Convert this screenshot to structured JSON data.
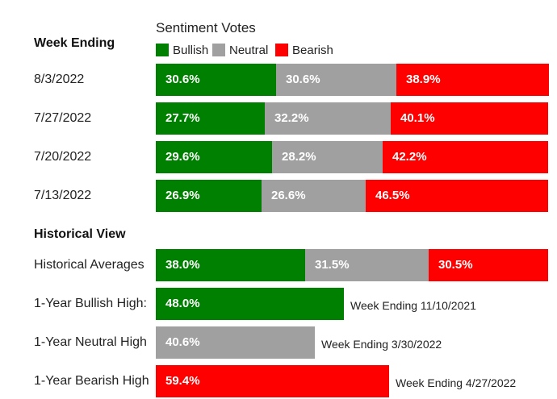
{
  "colors": {
    "bullish": "#008000",
    "neutral": "#a0a0a0",
    "bearish": "#ff0000"
  },
  "chart_data": {
    "type": "bar",
    "orientation": "horizontal",
    "stacked": true,
    "legend_title": "Sentiment Votes",
    "legend": [
      "Bullish",
      "Neutral",
      "Bearish"
    ],
    "sections": [
      {
        "title": "Week Ending",
        "rows": [
          {
            "label": "8/3/2022",
            "values": [
              {
                "series": "Bullish",
                "value": 30.6,
                "text": "30.6%"
              },
              {
                "series": "Neutral",
                "value": 30.6,
                "text": "30.6%"
              },
              {
                "series": "Bearish",
                "value": 38.9,
                "text": "38.9%"
              }
            ]
          },
          {
            "label": "7/27/2022",
            "values": [
              {
                "series": "Bullish",
                "value": 27.7,
                "text": "27.7%"
              },
              {
                "series": "Neutral",
                "value": 32.2,
                "text": "32.2%"
              },
              {
                "series": "Bearish",
                "value": 40.1,
                "text": "40.1%"
              }
            ]
          },
          {
            "label": "7/20/2022",
            "values": [
              {
                "series": "Bullish",
                "value": 29.6,
                "text": "29.6%"
              },
              {
                "series": "Neutral",
                "value": 28.2,
                "text": "28.2%"
              },
              {
                "series": "Bearish",
                "value": 42.2,
                "text": "42.2%"
              }
            ]
          },
          {
            "label": "7/13/2022",
            "values": [
              {
                "series": "Bullish",
                "value": 26.9,
                "text": "26.9%"
              },
              {
                "series": "Neutral",
                "value": 26.6,
                "text": "26.6%"
              },
              {
                "series": "Bearish",
                "value": 46.5,
                "text": "46.5%"
              }
            ]
          }
        ]
      },
      {
        "title": "Historical View",
        "rows": [
          {
            "label": "Historical Averages",
            "values": [
              {
                "series": "Bullish",
                "value": 38.0,
                "text": "38.0%"
              },
              {
                "series": "Neutral",
                "value": 31.5,
                "text": "31.5%"
              },
              {
                "series": "Bearish",
                "value": 30.5,
                "text": "30.5%"
              }
            ]
          },
          {
            "label": "1-Year Bullish High:",
            "values": [
              {
                "series": "Bullish",
                "value": 48.0,
                "text": "48.0%"
              }
            ],
            "note": "Week Ending 11/10/2021"
          },
          {
            "label": "1-Year Neutral High",
            "values": [
              {
                "series": "Neutral",
                "value": 40.6,
                "text": "40.6%"
              }
            ],
            "note": "Week Ending 3/30/2022"
          },
          {
            "label": "1-Year Bearish High",
            "values": [
              {
                "series": "Bearish",
                "value": 59.4,
                "text": "59.4%"
              }
            ],
            "note": "Week Ending 4/27/2022"
          }
        ]
      }
    ]
  }
}
